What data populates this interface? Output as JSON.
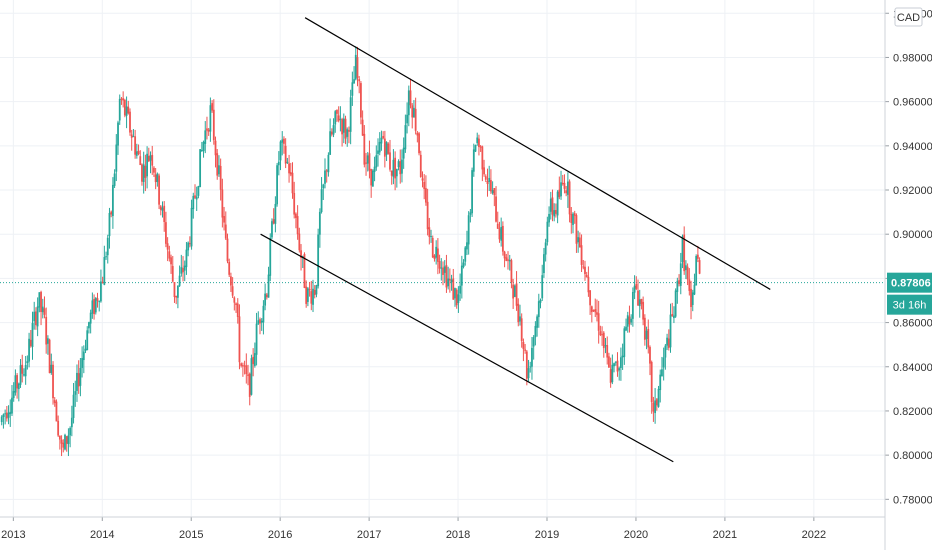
{
  "chart_data": {
    "type": "candlestick",
    "currency_label": "CAD",
    "current_price": {
      "label": "0.87806",
      "value": 0.87806
    },
    "countdown": "3d 16h",
    "y_ticks": [
      "0.78000",
      "0.80000",
      "0.82000",
      "0.84000",
      "0.86000",
      "0.88000",
      "0.90000",
      "0.92000",
      "0.94000",
      "0.96000",
      "0.98000",
      "1.00000"
    ],
    "ylim": [
      0.772,
      1.006
    ],
    "x_ticks": [
      "2013",
      "2014",
      "2015",
      "2016",
      "2017",
      "2018",
      "2019",
      "2020",
      "2021",
      "2022"
    ],
    "xlim": [
      2012.85,
      2022.8
    ],
    "grid": true,
    "colors": {
      "up": "#26a69a",
      "down": "#ef5350",
      "line": "#000000",
      "price_badge": "#26a69a",
      "grid": "#eef1f5"
    },
    "price_path": [
      [
        2012.85,
        0.815
      ],
      [
        2013.0,
        0.828
      ],
      [
        2013.15,
        0.843
      ],
      [
        2013.28,
        0.87
      ],
      [
        2013.35,
        0.86
      ],
      [
        2013.45,
        0.83
      ],
      [
        2013.55,
        0.8
      ],
      [
        2013.65,
        0.815
      ],
      [
        2013.75,
        0.84
      ],
      [
        2013.85,
        0.86
      ],
      [
        2014.0,
        0.88
      ],
      [
        2014.1,
        0.91
      ],
      [
        2014.15,
        0.935
      ],
      [
        2014.2,
        0.962
      ],
      [
        2014.35,
        0.943
      ],
      [
        2014.45,
        0.928
      ],
      [
        2014.55,
        0.938
      ],
      [
        2014.65,
        0.915
      ],
      [
        2014.75,
        0.89
      ],
      [
        2014.82,
        0.872
      ],
      [
        2014.95,
        0.89
      ],
      [
        2015.05,
        0.92
      ],
      [
        2015.15,
        0.945
      ],
      [
        2015.22,
        0.956
      ],
      [
        2015.3,
        0.93
      ],
      [
        2015.4,
        0.89
      ],
      [
        2015.5,
        0.87
      ],
      [
        2015.55,
        0.842
      ],
      [
        2015.65,
        0.83
      ],
      [
        2015.75,
        0.86
      ],
      [
        2015.85,
        0.876
      ],
      [
        2015.95,
        0.92
      ],
      [
        2016.0,
        0.94
      ],
      [
        2016.1,
        0.93
      ],
      [
        2016.2,
        0.9
      ],
      [
        2016.3,
        0.872
      ],
      [
        2016.4,
        0.876
      ],
      [
        2016.45,
        0.91
      ],
      [
        2016.55,
        0.94
      ],
      [
        2016.65,
        0.955
      ],
      [
        2016.75,
        0.945
      ],
      [
        2016.85,
        0.976
      ],
      [
        2016.9,
        0.96
      ],
      [
        2016.95,
        0.935
      ],
      [
        2017.05,
        0.925
      ],
      [
        2017.15,
        0.945
      ],
      [
        2017.25,
        0.93
      ],
      [
        2017.35,
        0.93
      ],
      [
        2017.45,
        0.966
      ],
      [
        2017.55,
        0.945
      ],
      [
        2017.6,
        0.92
      ],
      [
        2017.7,
        0.895
      ],
      [
        2017.8,
        0.89
      ],
      [
        2017.9,
        0.878
      ],
      [
        2018.0,
        0.87
      ],
      [
        2018.1,
        0.895
      ],
      [
        2018.15,
        0.92
      ],
      [
        2018.2,
        0.946
      ],
      [
        2018.3,
        0.93
      ],
      [
        2018.4,
        0.915
      ],
      [
        2018.5,
        0.895
      ],
      [
        2018.6,
        0.88
      ],
      [
        2018.7,
        0.862
      ],
      [
        2018.78,
        0.836
      ],
      [
        2018.85,
        0.855
      ],
      [
        2018.95,
        0.88
      ],
      [
        2019.0,
        0.91
      ],
      [
        2019.1,
        0.912
      ],
      [
        2019.2,
        0.926
      ],
      [
        2019.3,
        0.905
      ],
      [
        2019.4,
        0.89
      ],
      [
        2019.5,
        0.87
      ],
      [
        2019.6,
        0.858
      ],
      [
        2019.7,
        0.836
      ],
      [
        2019.8,
        0.84
      ],
      [
        2019.9,
        0.86
      ],
      [
        2020.0,
        0.876
      ],
      [
        2020.08,
        0.865
      ],
      [
        2020.15,
        0.84
      ],
      [
        2020.2,
        0.815
      ],
      [
        2020.25,
        0.83
      ],
      [
        2020.35,
        0.85
      ],
      [
        2020.45,
        0.87
      ],
      [
        2020.52,
        0.895
      ],
      [
        2020.58,
        0.878
      ],
      [
        2020.62,
        0.862
      ],
      [
        2020.68,
        0.892
      ],
      [
        2020.72,
        0.878
      ]
    ],
    "trendlines": [
      {
        "x": [
          2016.28,
          2021.51
        ],
        "y": [
          0.998,
          0.875
        ]
      },
      {
        "x": [
          2015.78,
          2020.42
        ],
        "y": [
          0.9,
          0.797
        ]
      }
    ]
  }
}
